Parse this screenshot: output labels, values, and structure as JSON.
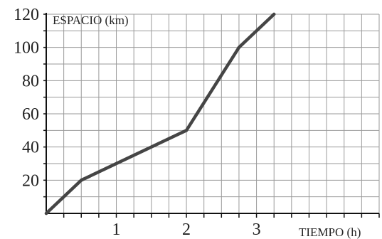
{
  "chart_data": {
    "type": "line",
    "xlabel": "TIEMPO (h)",
    "ylabel": "ESPACIO (km)",
    "xlim": [
      0,
      4.75
    ],
    "ylim": [
      0,
      120
    ],
    "x_ticks": [
      1,
      2,
      3
    ],
    "y_ticks": [
      20,
      40,
      60,
      80,
      100,
      120
    ],
    "grid": true,
    "series": [
      {
        "x": [
          0,
          0.5,
          2,
          2.75,
          3.25
        ],
        "y": [
          0,
          20,
          50,
          100,
          120
        ]
      }
    ],
    "colors": {
      "line": "#454545",
      "grid": "#9a9a9a",
      "axis": "#111111",
      "text": "#222222"
    }
  }
}
